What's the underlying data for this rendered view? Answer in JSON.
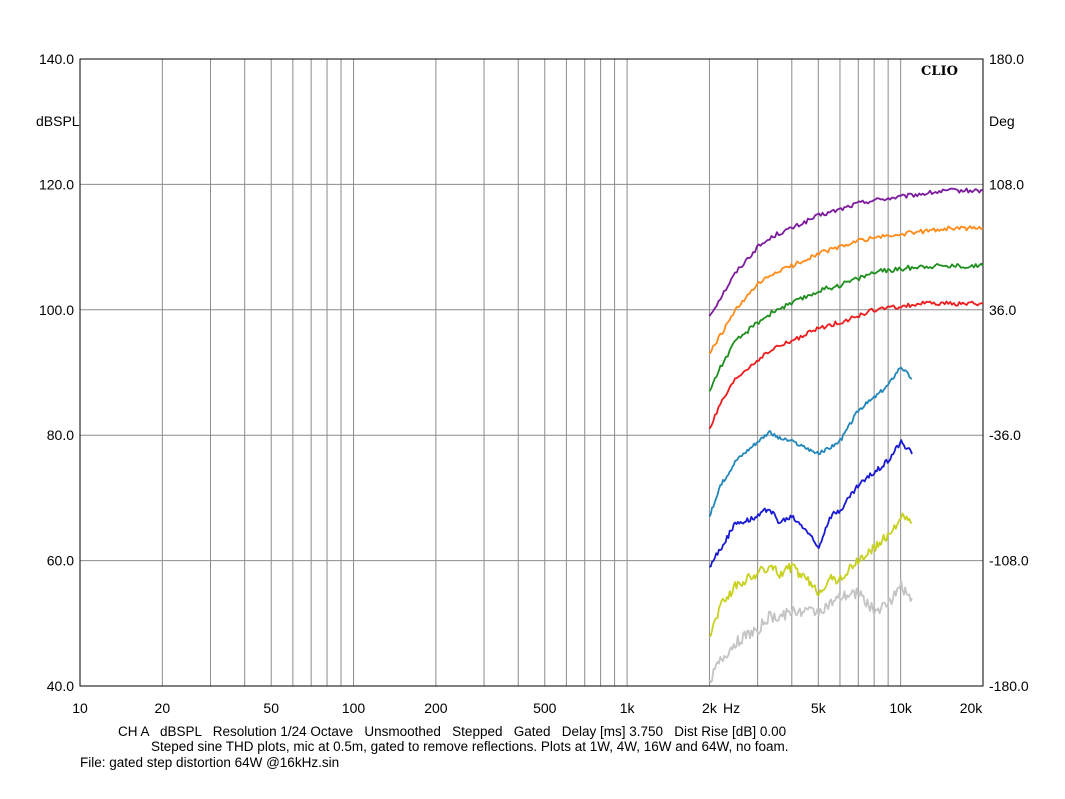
{
  "chart_data": {
    "type": "line",
    "title": "",
    "brand": "CLIO",
    "xlabel": "Hz",
    "ylabel": "dBSPL",
    "ylabel_right": "Deg",
    "x_scale": "log",
    "xlim": [
      10,
      20000
    ],
    "ylim": [
      40,
      140
    ],
    "ylim_right": [
      -180,
      180
    ],
    "y_ticks": [
      {
        "v": 40,
        "label": "40.0"
      },
      {
        "v": 60,
        "label": "60.0"
      },
      {
        "v": 80,
        "label": "80.0"
      },
      {
        "v": 100,
        "label": "100.0"
      },
      {
        "v": 120,
        "label": "120.0"
      },
      {
        "v": 140,
        "label": "140.0"
      }
    ],
    "y_ticks_right": [
      {
        "v": -180,
        "label": "-180.0"
      },
      {
        "v": -108,
        "label": "-108.0"
      },
      {
        "v": -36,
        "label": "-36.0"
      },
      {
        "v": 36,
        "label": "36.0"
      },
      {
        "v": 108,
        "label": "108.0"
      },
      {
        "v": 180,
        "label": "180.0"
      }
    ],
    "x_ticks": [
      {
        "v": 10,
        "label": "10"
      },
      {
        "v": 20,
        "label": "20"
      },
      {
        "v": 50,
        "label": "50"
      },
      {
        "v": 100,
        "label": "100"
      },
      {
        "v": 200,
        "label": "200"
      },
      {
        "v": 500,
        "label": "500"
      },
      {
        "v": 1000,
        "label": "1k"
      },
      {
        "v": 2000,
        "label": "2k"
      },
      {
        "v": 5000,
        "label": "5k"
      },
      {
        "v": 10000,
        "label": "10k"
      },
      {
        "v": 20000,
        "label": "20k"
      }
    ],
    "grid": true,
    "series": [
      {
        "color": "#7d1b9e",
        "noise": 0.35,
        "x": [
          2000,
          2200,
          2500,
          3000,
          3500,
          4000,
          5000,
          6000,
          7000,
          8000,
          10000,
          12000,
          15000,
          18000,
          20000
        ],
        "y": [
          99,
          102,
          106,
          110,
          112,
          113,
          115,
          116,
          117,
          117.5,
          118,
          118.5,
          119,
          119,
          119
        ]
      },
      {
        "color": "#ff8c1a",
        "noise": 0.35,
        "x": [
          2000,
          2200,
          2500,
          3000,
          3500,
          4000,
          5000,
          6000,
          7000,
          8000,
          10000,
          12000,
          15000,
          18000,
          20000
        ],
        "y": [
          93,
          96,
          100,
          104,
          106,
          107,
          109,
          110,
          111,
          111.5,
          112,
          112.5,
          113,
          113,
          113
        ]
      },
      {
        "color": "#1f8f1f",
        "noise": 0.4,
        "x": [
          2000,
          2200,
          2500,
          3000,
          3500,
          4000,
          5000,
          6000,
          7000,
          8000,
          10000,
          12000,
          15000,
          18000,
          20000
        ],
        "y": [
          87,
          91,
          95,
          98,
          100,
          101,
          103,
          104,
          105,
          106,
          106.5,
          107,
          107,
          107,
          107
        ]
      },
      {
        "color": "#ee1c1c",
        "noise": 0.35,
        "x": [
          2000,
          2200,
          2500,
          3000,
          3500,
          4000,
          5000,
          6000,
          7000,
          8000,
          10000,
          12000,
          15000,
          18000,
          20000
        ],
        "y": [
          81,
          85,
          89,
          92,
          94,
          95,
          97,
          98,
          99,
          100,
          100.5,
          101,
          101,
          101,
          101
        ]
      },
      {
        "color": "#2287bb",
        "noise": 0.3,
        "x": [
          2000,
          2200,
          2500,
          3000,
          3300,
          3600,
          4000,
          4500,
          5000,
          5500,
          6000,
          7000,
          8000,
          9000,
          10000,
          11000
        ],
        "y": [
          67,
          72,
          76,
          79,
          80.5,
          79.5,
          79,
          78,
          77,
          78,
          79,
          84,
          86,
          88,
          91,
          89
        ]
      },
      {
        "color": "#1a1ad4",
        "noise": 0.45,
        "x": [
          2000,
          2200,
          2500,
          3000,
          3300,
          3600,
          4000,
          4500,
          5000,
          5500,
          6000,
          7000,
          8000,
          9000,
          10000,
          11000
        ],
        "y": [
          59,
          62,
          66,
          67,
          68.5,
          66,
          67,
          65,
          62,
          67,
          68,
          72,
          74,
          76,
          79,
          77
        ]
      },
      {
        "color": "#c8d21e",
        "noise": 0.8,
        "x": [
          2000,
          2200,
          2500,
          3000,
          3300,
          3600,
          4000,
          4500,
          5000,
          5500,
          6000,
          7000,
          8000,
          9000,
          10000,
          11000
        ],
        "y": [
          48,
          53,
          56,
          58,
          59,
          58,
          59,
          57,
          55,
          57,
          57,
          60,
          62,
          64,
          67,
          66
        ]
      },
      {
        "color": "#c4c4c4",
        "noise": 0.9,
        "x": [
          2000,
          2200,
          2500,
          3000,
          3300,
          3600,
          4000,
          4500,
          5000,
          5500,
          6000,
          7000,
          8000,
          9000,
          10000,
          11000
        ],
        "y": [
          41,
          44,
          47,
          49,
          51,
          51,
          52,
          52,
          52,
          53,
          54,
          55,
          52,
          53,
          56,
          54
        ]
      }
    ],
    "info_lines": [
      "CH A   dBSPL   Resolution 1/24 Octave   Unsmoothed   Stepped   Gated   Delay [ms] 3.750   Dist Rise [dB] 0.00",
      "Steped sine THD plots, mic at 0.5m, gated to remove reflections. Plots at 1W, 4W, 16W and 64W, no foam.",
      "File: gated step distortion 64W @16kHz.sin"
    ]
  }
}
